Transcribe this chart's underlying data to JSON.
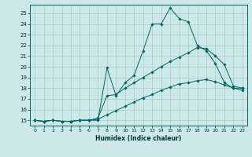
{
  "xlabel": "Humidex (Indice chaleur)",
  "bg_color": "#cce8e8",
  "grid_color": "#aacccc",
  "line_color": "#006666",
  "xlim": [
    -0.5,
    23.5
  ],
  "ylim": [
    14.5,
    25.8
  ],
  "yticks": [
    15,
    16,
    17,
    18,
    19,
    20,
    21,
    22,
    23,
    24,
    25
  ],
  "xticks": [
    0,
    1,
    2,
    3,
    4,
    5,
    6,
    7,
    8,
    9,
    10,
    11,
    12,
    13,
    14,
    15,
    16,
    17,
    18,
    19,
    20,
    21,
    22,
    23
  ],
  "series1_x": [
    0,
    1,
    2,
    3,
    4,
    5,
    6,
    7,
    8,
    9,
    10,
    11,
    12,
    13,
    14,
    15,
    16,
    17,
    18,
    19,
    20,
    21,
    22,
    23
  ],
  "series1_y": [
    15.0,
    14.9,
    15.0,
    14.9,
    14.9,
    15.0,
    15.0,
    15.0,
    19.9,
    17.3,
    18.5,
    19.2,
    21.5,
    24.0,
    24.0,
    25.5,
    24.5,
    24.2,
    22.0,
    21.5,
    20.3,
    18.5,
    18.0,
    18.0
  ],
  "series2_x": [
    0,
    1,
    2,
    3,
    4,
    5,
    6,
    7,
    8,
    9,
    10,
    11,
    12,
    13,
    14,
    15,
    16,
    17,
    18,
    19,
    20,
    21,
    22,
    23
  ],
  "series2_y": [
    15.0,
    14.9,
    15.0,
    14.9,
    14.9,
    15.0,
    15.0,
    15.2,
    17.3,
    17.4,
    18.0,
    18.5,
    19.0,
    19.5,
    20.0,
    20.5,
    20.9,
    21.3,
    21.8,
    21.7,
    21.0,
    20.2,
    18.2,
    18.0
  ],
  "series3_x": [
    0,
    1,
    2,
    3,
    4,
    5,
    6,
    7,
    8,
    9,
    10,
    11,
    12,
    13,
    14,
    15,
    16,
    17,
    18,
    19,
    20,
    21,
    22,
    23
  ],
  "series3_y": [
    15.0,
    14.9,
    15.0,
    14.9,
    14.9,
    15.0,
    15.0,
    15.1,
    15.5,
    15.9,
    16.3,
    16.7,
    17.1,
    17.4,
    17.8,
    18.1,
    18.4,
    18.5,
    18.7,
    18.8,
    18.6,
    18.3,
    18.0,
    17.8
  ]
}
